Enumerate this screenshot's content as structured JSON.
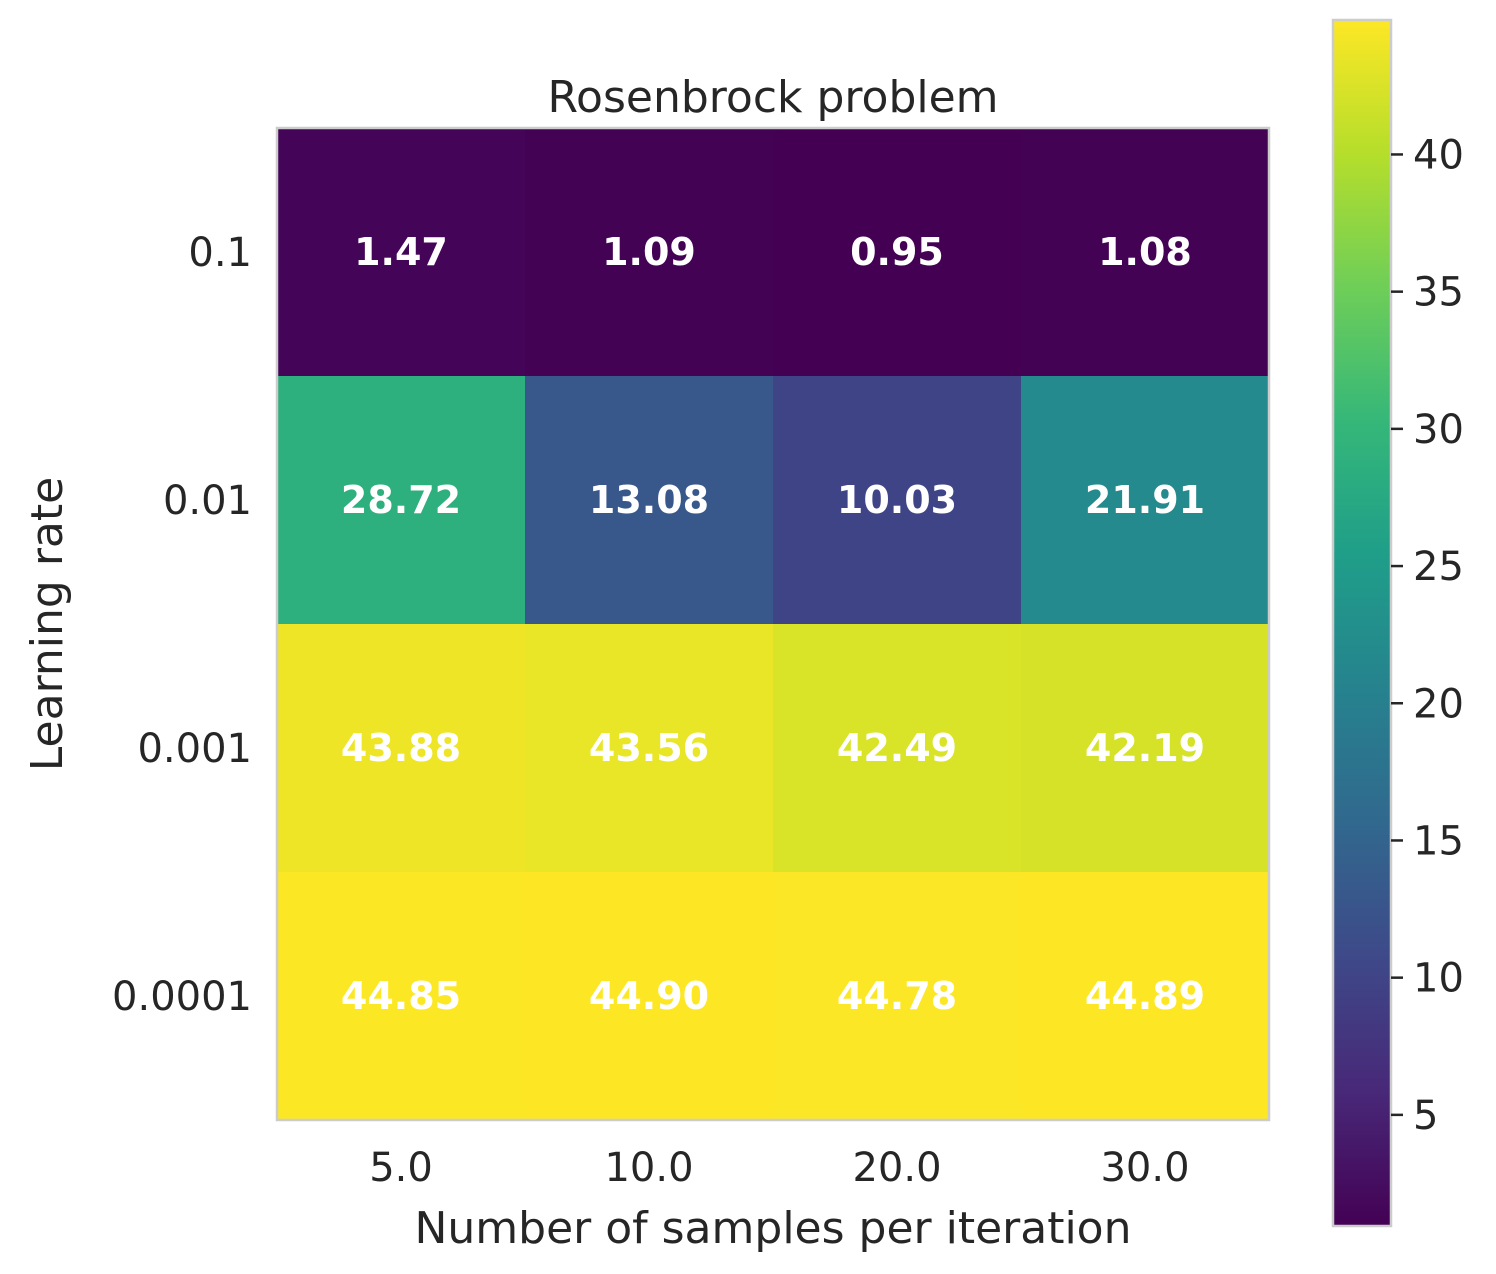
{
  "chart_data": {
    "type": "heatmap",
    "title": "Rosenbrock problem",
    "xlabel": "Number of samples per iteration",
    "ylabel": "Learning rate",
    "x_categories": [
      "5.0",
      "10.0",
      "20.0",
      "30.0"
    ],
    "y_categories": [
      "0.1",
      "0.01",
      "0.001",
      "0.0001"
    ],
    "values": [
      [
        1.47,
        1.09,
        0.95,
        1.08
      ],
      [
        28.72,
        13.08,
        10.03,
        21.91
      ],
      [
        43.88,
        43.56,
        42.49,
        42.19
      ],
      [
        44.85,
        44.9,
        44.78,
        44.89
      ]
    ],
    "value_labels": [
      [
        "1.47",
        "1.09",
        "0.95",
        "1.08"
      ],
      [
        "28.72",
        "13.08",
        "10.03",
        "21.91"
      ],
      [
        "43.88",
        "43.56",
        "42.49",
        "42.19"
      ],
      [
        "44.85",
        "44.90",
        "44.78",
        "44.89"
      ]
    ],
    "colormap": "viridis",
    "colorbar": {
      "range": [
        0.95,
        44.9
      ],
      "ticks": [
        5,
        10,
        15,
        20,
        25,
        30,
        35,
        40
      ],
      "tick_labels": [
        "5",
        "10",
        "15",
        "20",
        "25",
        "30",
        "35",
        "40"
      ],
      "placement": "right"
    },
    "grid": false
  }
}
